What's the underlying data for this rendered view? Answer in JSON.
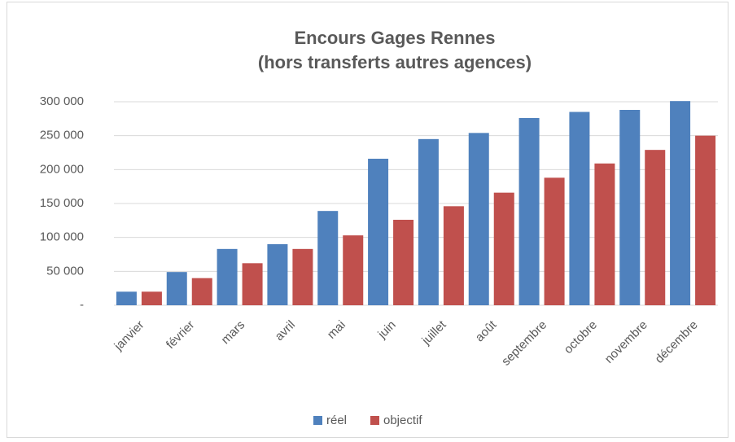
{
  "chart_data": {
    "type": "bar",
    "title": [
      "Encours Gages Rennes",
      "(hors transferts autres agences)"
    ],
    "categories": [
      "janvier",
      "février",
      "mars",
      "avril",
      "mai",
      "juin",
      "juillet",
      "août",
      "septembre",
      "octobre",
      "novembre",
      "décembre"
    ],
    "series": [
      {
        "name": "réel",
        "color": "#4f81bd",
        "values": [
          20000,
          49000,
          83000,
          90000,
          139000,
          216000,
          245000,
          254000,
          276000,
          285000,
          288000,
          301000
        ]
      },
      {
        "name": "objectif",
        "color": "#c0504d",
        "values": [
          20000,
          40000,
          62000,
          83000,
          103000,
          126000,
          146000,
          166000,
          188000,
          209000,
          229000,
          250000
        ]
      }
    ],
    "ylim": [
      0,
      300000
    ],
    "yticks": [
      {
        "value": 0,
        "label": "-"
      },
      {
        "value": 50000,
        "label": "50 000"
      },
      {
        "value": 100000,
        "label": "100 000"
      },
      {
        "value": 150000,
        "label": "150 000"
      },
      {
        "value": 200000,
        "label": "200 000"
      },
      {
        "value": 250000,
        "label": "250 000"
      },
      {
        "value": 300000,
        "label": "300 000"
      }
    ],
    "grid": true,
    "legend": "bottom"
  }
}
